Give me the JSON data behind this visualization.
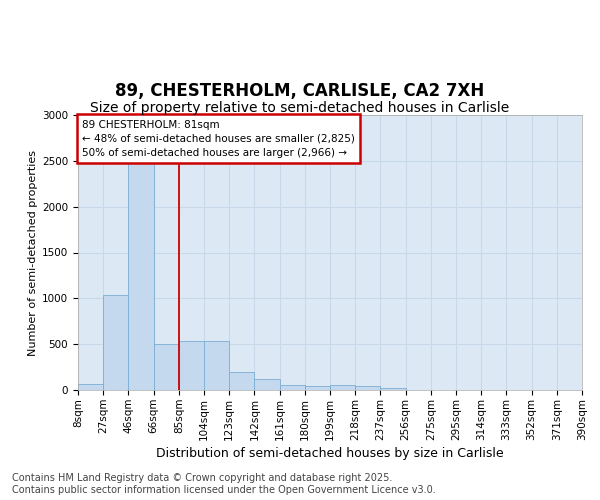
{
  "title": "89, CHESTERHOLM, CARLISLE, CA2 7XH",
  "subtitle": "Size of property relative to semi-detached houses in Carlisle",
  "xlabel": "Distribution of semi-detached houses by size in Carlisle",
  "ylabel": "Number of semi-detached properties",
  "bin_labels": [
    "8sqm",
    "27sqm",
    "46sqm",
    "66sqm",
    "85sqm",
    "104sqm",
    "123sqm",
    "142sqm",
    "161sqm",
    "180sqm",
    "199sqm",
    "218sqm",
    "237sqm",
    "256sqm",
    "275sqm",
    "295sqm",
    "314sqm",
    "333sqm",
    "352sqm",
    "371sqm",
    "390sqm"
  ],
  "bar_values": [
    70,
    1040,
    2500,
    500,
    530,
    530,
    195,
    120,
    55,
    40,
    55,
    40,
    20,
    0,
    0,
    0,
    0,
    0,
    0,
    0
  ],
  "bar_color": "#c5d9ee",
  "bar_edge_color": "#7aadd4",
  "vline_bin_index": 4,
  "vline_color": "#cc0000",
  "annotation_text": "89 CHESTERHOLM: 81sqm\n← 48% of semi-detached houses are smaller (2,825)\n50% of semi-detached houses are larger (2,966) →",
  "annotation_box_color": "#ffffff",
  "annotation_box_edge_color": "#cc0000",
  "ylim": [
    0,
    3000
  ],
  "yticks": [
    0,
    500,
    1000,
    1500,
    2000,
    2500,
    3000
  ],
  "plot_bg_color": "#dce9f5",
  "fig_bg_color": "#ffffff",
  "grid_color": "#c8d8e8",
  "footer_text": "Contains HM Land Registry data © Crown copyright and database right 2025.\nContains public sector information licensed under the Open Government Licence v3.0.",
  "title_fontsize": 12,
  "subtitle_fontsize": 10,
  "ylabel_fontsize": 8,
  "xlabel_fontsize": 9,
  "tick_fontsize": 7.5,
  "footer_fontsize": 7,
  "annotation_fontsize": 7.5
}
